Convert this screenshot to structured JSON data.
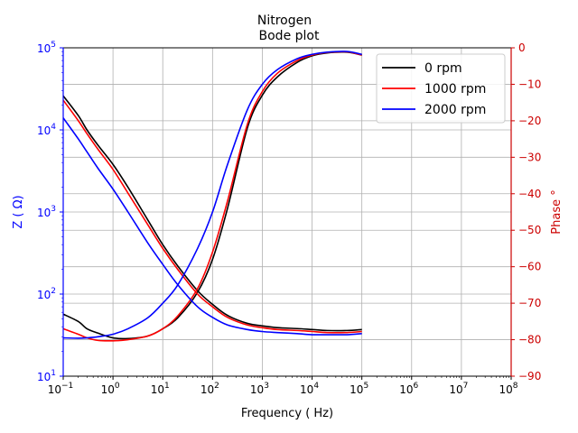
{
  "chart_data": {
    "type": "line",
    "title": "Nitrogen\nBode plot",
    "xlabel": "Frequency  ( Hz)",
    "ylabel_left": "Z ( Ω)",
    "ylabel_right": "Phase °",
    "x_scale": "log",
    "xlim": [
      0.1,
      100000000
    ],
    "ylim_left": [
      10,
      100000
    ],
    "ylim_left_scale": "log",
    "ylim_right": [
      -90,
      0
    ],
    "grid": true,
    "legend_placement": "top-right",
    "x_ticks": [
      {
        "base": "10",
        "exp": "−1"
      },
      {
        "base": "10",
        "exp": "0"
      },
      {
        "base": "10",
        "exp": "1"
      },
      {
        "base": "10",
        "exp": "2"
      },
      {
        "base": "10",
        "exp": "3"
      },
      {
        "base": "10",
        "exp": "4"
      },
      {
        "base": "10",
        "exp": "5"
      },
      {
        "base": "10",
        "exp": "6"
      },
      {
        "base": "10",
        "exp": "7"
      },
      {
        "base": "10",
        "exp": "8"
      }
    ],
    "left_ticks": [
      {
        "base": "10",
        "exp": "1"
      },
      {
        "base": "10",
        "exp": "2"
      },
      {
        "base": "10",
        "exp": "3"
      },
      {
        "base": "10",
        "exp": "4"
      },
      {
        "base": "10",
        "exp": "5"
      }
    ],
    "right_ticks": [
      "0",
      "−10",
      "−20",
      "−30",
      "−40",
      "−50",
      "−60",
      "−70",
      "−80",
      "−90"
    ],
    "frequency_hz": [
      0.1,
      0.2,
      0.3,
      0.5,
      1,
      2,
      5,
      10,
      20,
      50,
      100,
      200,
      500,
      1000,
      2000,
      5000,
      10000,
      20000,
      50000,
      100000
    ],
    "series": [
      {
        "name": "0 rpm",
        "color": "#000000",
        "impedance_ohm": [
          26000,
          15000,
          10000,
          6500,
          3800,
          2000,
          800,
          400,
          220,
          110,
          75,
          55,
          44,
          41,
          39,
          38,
          37,
          36,
          36,
          37
        ],
        "phase_deg": [
          -73,
          -75,
          -77,
          -78.2,
          -79.5,
          -79.7,
          -79,
          -77,
          -74,
          -67,
          -58,
          -44,
          -22,
          -13,
          -8,
          -4,
          -2.2,
          -1.4,
          -1.2,
          -2
        ]
      },
      {
        "name": "1000 rpm",
        "color": "#ff0000",
        "impedance_ohm": [
          23000,
          13000,
          9000,
          5800,
          3300,
          1700,
          700,
          360,
          200,
          100,
          70,
          52,
          42,
          39,
          37,
          36,
          35,
          34,
          34,
          35
        ],
        "phase_deg": [
          -77,
          -78.5,
          -79.5,
          -80.2,
          -80.3,
          -80,
          -79,
          -77,
          -73.5,
          -66,
          -56,
          -42,
          -21,
          -12,
          -7,
          -3.5,
          -2,
          -1.3,
          -1.1,
          -2
        ]
      },
      {
        "name": "2000 rpm",
        "color": "#0000ff",
        "impedance_ohm": [
          14000,
          7800,
          5400,
          3400,
          1900,
          1000,
          420,
          230,
          130,
          70,
          52,
          42,
          37,
          35,
          34,
          33,
          32,
          32,
          32,
          33
        ],
        "phase_deg": [
          -79.5,
          -79.6,
          -79.5,
          -79.2,
          -78.5,
          -77,
          -74,
          -70,
          -65,
          -55,
          -45,
          -32,
          -17,
          -10,
          -6,
          -3,
          -1.8,
          -1.2,
          -1,
          -1.8
        ]
      }
    ]
  }
}
